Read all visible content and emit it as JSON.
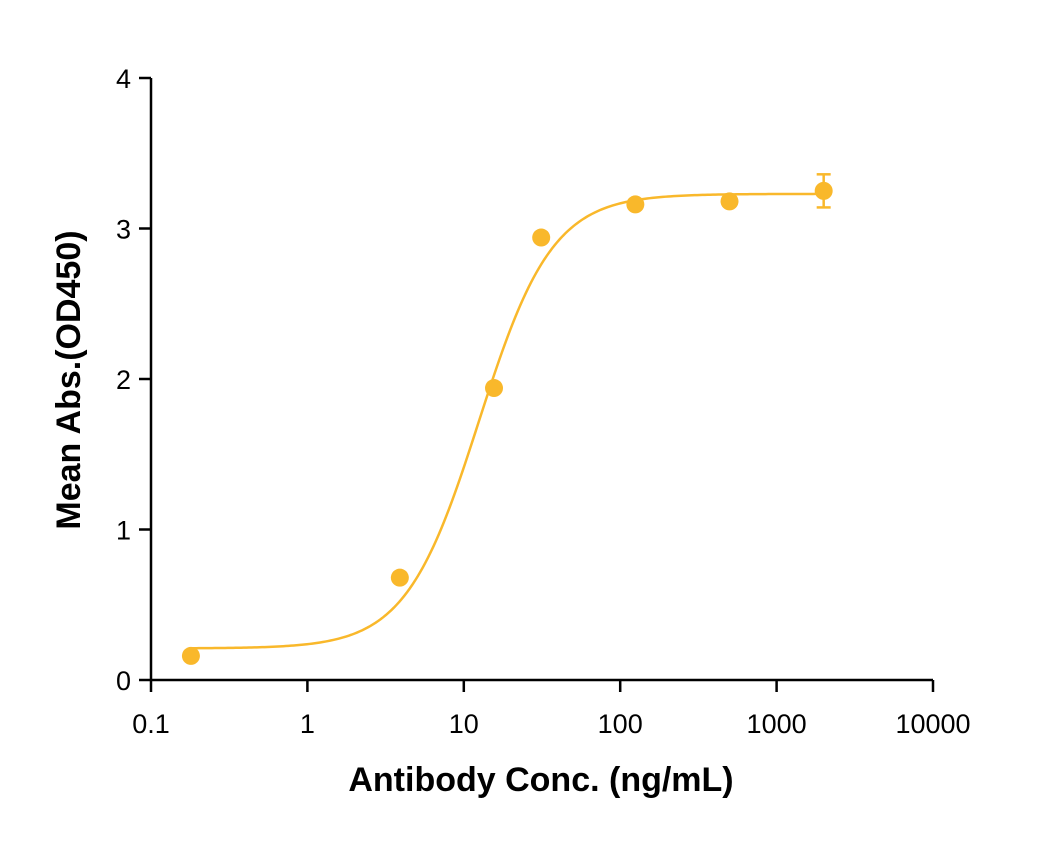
{
  "chart_data": {
    "type": "scatter",
    "title": "",
    "xlabel": "Antibody Conc. (ng/mL)",
    "ylabel": "Mean Abs.(OD450)",
    "xscale": "log",
    "xlim": [
      0.1,
      10000
    ],
    "ylim": [
      0,
      4
    ],
    "x_ticks": [
      "0.1",
      "1",
      "10",
      "100",
      "1000",
      "10000"
    ],
    "y_ticks": [
      "0",
      "1",
      "2",
      "3",
      "4"
    ],
    "grid": false,
    "legend": "none",
    "color": "#F9B82B",
    "points": [
      {
        "x": 0.18,
        "y": 0.16
      },
      {
        "x": 3.9,
        "y": 0.68
      },
      {
        "x": 15.6,
        "y": 1.94
      },
      {
        "x": 31.25,
        "y": 2.94
      },
      {
        "x": 125,
        "y": 3.16
      },
      {
        "x": 500,
        "y": 3.18
      },
      {
        "x": 2000,
        "y": 3.25,
        "err": 0.11
      }
    ],
    "fit": {
      "bottom": 0.21,
      "top": 3.23,
      "ec50": 12.5,
      "hill": 1.85
    }
  }
}
